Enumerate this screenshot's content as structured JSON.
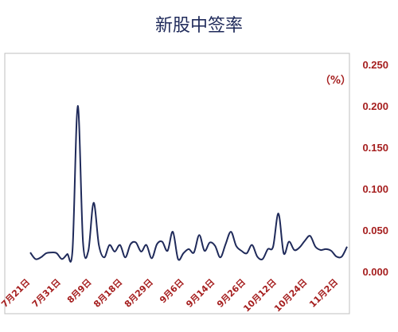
{
  "chart_data": {
    "type": "line",
    "title": "新股中签率",
    "unit_label": "（%）",
    "ylim": [
      0,
      0.25
    ],
    "yticks": [
      "0.000",
      "0.050",
      "0.100",
      "0.150",
      "0.200",
      "0.250"
    ],
    "xtick_labels": [
      "7月21日",
      "7月31日",
      "8月9日",
      "8月18日",
      "8月29日",
      "9月6日",
      "9月14日",
      "9月26日",
      "10月12日",
      "10月24日",
      "11月2日"
    ],
    "grid": false,
    "legend": "none",
    "line_color": "#1f2a5a",
    "series": [
      {
        "values": [
          0.023,
          0.015,
          0.017,
          0.022,
          0.023,
          0.022,
          0.015,
          0.021,
          0.026,
          0.2,
          0.035,
          0.025,
          0.083,
          0.032,
          0.017,
          0.032,
          0.024,
          0.032,
          0.017,
          0.033,
          0.035,
          0.024,
          0.032,
          0.016,
          0.033,
          0.036,
          0.025,
          0.048,
          0.015,
          0.022,
          0.027,
          0.023,
          0.044,
          0.025,
          0.035,
          0.031,
          0.017,
          0.033,
          0.048,
          0.031,
          0.025,
          0.022,
          0.032,
          0.018,
          0.015,
          0.027,
          0.03,
          0.07,
          0.022,
          0.036,
          0.026,
          0.029,
          0.037,
          0.043,
          0.03,
          0.026,
          0.027,
          0.025,
          0.018,
          0.018,
          0.03
        ]
      }
    ]
  }
}
